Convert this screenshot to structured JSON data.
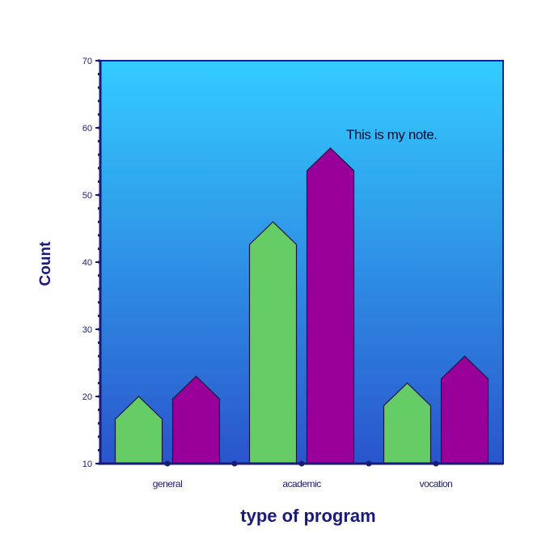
{
  "chart_data": {
    "type": "bar",
    "title": "",
    "xlabel": "type of program",
    "ylabel": "Count",
    "categories": [
      "general",
      "academic",
      "vocation"
    ],
    "series": [
      {
        "values": [
          20,
          46,
          22
        ]
      },
      {
        "values": [
          23,
          57,
          26
        ]
      }
    ],
    "ylim": [
      10,
      70
    ],
    "yticks": [
      10,
      20,
      30,
      40,
      50,
      60,
      70
    ],
    "annotation": "This is my note.",
    "grid": false,
    "legend": "none",
    "colors": {
      "series": [
        "#66cc66",
        "#990099"
      ],
      "plot_background_top": "#33ccff",
      "plot_background_bottom": "#2a55cc",
      "axis": "#1a1a7a",
      "bar_stroke": "#1a1a3a"
    }
  }
}
